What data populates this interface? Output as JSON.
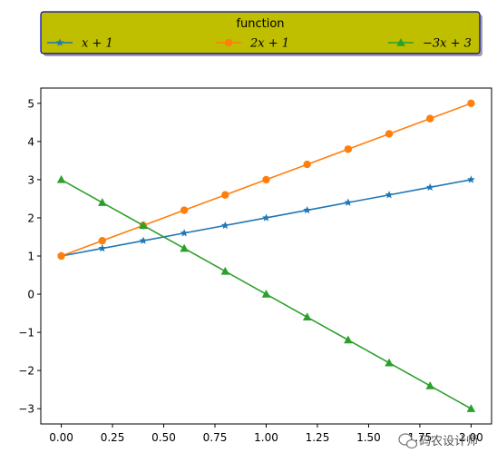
{
  "chart_data": {
    "type": "line",
    "x": [
      0.0,
      0.2,
      0.4,
      0.6,
      0.8,
      1.0,
      1.2,
      1.4,
      1.6,
      1.8,
      2.0
    ],
    "xlim": [
      -0.1,
      2.1
    ],
    "ylim": [
      -3.4,
      5.4
    ],
    "xticks": [
      0.0,
      0.25,
      0.5,
      0.75,
      1.0,
      1.25,
      1.5,
      1.75,
      2.0
    ],
    "xtick_labels": [
      "0.00",
      "0.25",
      "0.50",
      "0.75",
      "1.00",
      "1.25",
      "1.50",
      "1.75",
      "2.00"
    ],
    "yticks": [
      -3,
      -2,
      -1,
      0,
      1,
      2,
      3,
      4,
      5
    ],
    "ytick_labels": [
      "−3",
      "−2",
      "−1",
      "0",
      "1",
      "2",
      "3",
      "4",
      "5"
    ],
    "grid": false,
    "legend": {
      "title": "function",
      "placement": "top, outside plot",
      "ncol": 3,
      "background": "#bfbf00",
      "edge_color": "#0000aa"
    },
    "series": [
      {
        "name": "x + 1",
        "color": "#1f77b4",
        "marker": "star",
        "values": [
          1.0,
          1.2,
          1.4,
          1.6,
          1.8,
          2.0,
          2.2,
          2.4,
          2.6,
          2.8,
          3.0
        ]
      },
      {
        "name": "2x + 1",
        "color": "#ff7f0e",
        "marker": "circle",
        "values": [
          1.0,
          1.4,
          1.8,
          2.2,
          2.6,
          3.0,
          3.4,
          3.8,
          4.2,
          4.6,
          5.0
        ]
      },
      {
        "name": "−3x + 3",
        "color": "#2ca02c",
        "marker": "triangle",
        "values": [
          3.0,
          2.4,
          1.8,
          1.2,
          0.6,
          0.0,
          -0.6,
          -1.2,
          -1.8,
          -2.4,
          -3.0
        ]
      }
    ]
  },
  "watermark": "码农设计师"
}
